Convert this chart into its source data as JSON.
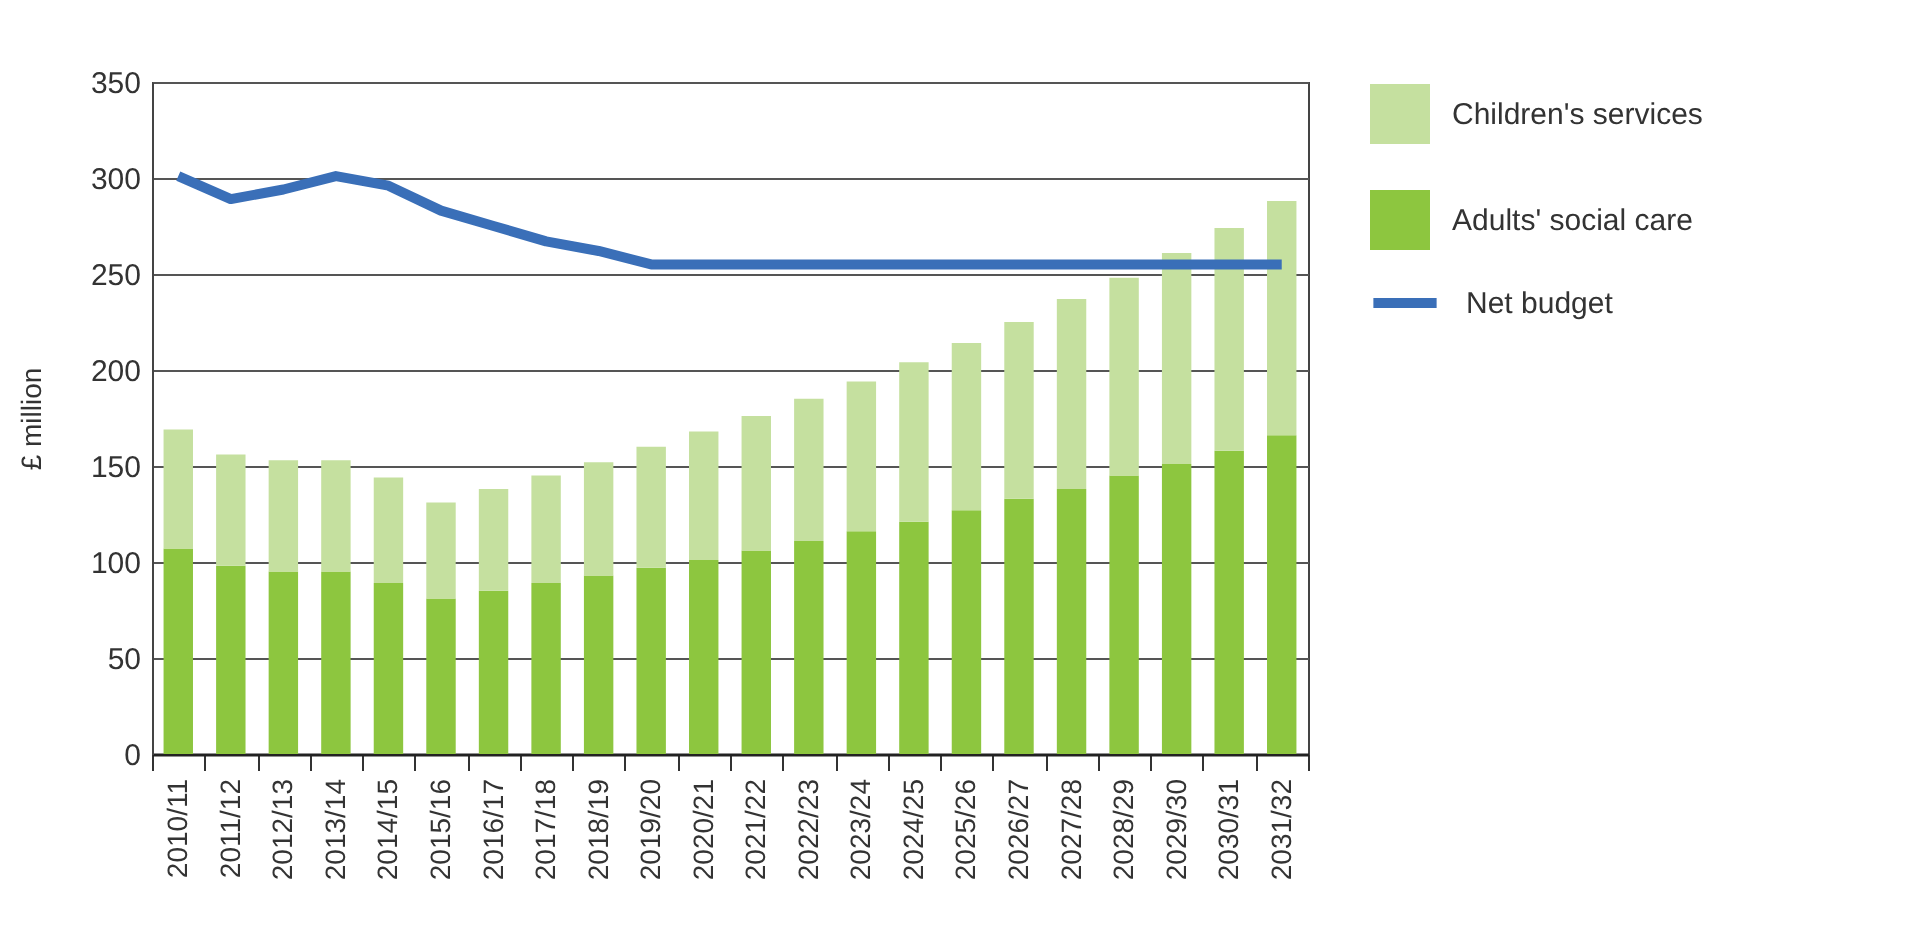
{
  "chart_data": {
    "type": "bar",
    "stacked": true,
    "ylabel": "£ million",
    "categories": [
      "2010/11",
      "2011/12",
      "2012/13",
      "2013/14",
      "2014/15",
      "2015/16",
      "2016/17",
      "2017/18",
      "2018/19",
      "2019/20",
      "2020/21",
      "2021/22",
      "2022/23",
      "2023/24",
      "2024/25",
      "2025/26",
      "2026/27",
      "2027/28",
      "2028/29",
      "2029/30",
      "2030/31",
      "2031/32"
    ],
    "series": [
      {
        "name": "Adults' social care",
        "color": "#8dc63f",
        "values": [
          107,
          98,
          95,
          95,
          89,
          81,
          85,
          89,
          93,
          97,
          101,
          106,
          111,
          116,
          121,
          127,
          133,
          138,
          145,
          151,
          158,
          166
        ]
      },
      {
        "name": "Children's services",
        "color": "#c5e09f",
        "values": [
          62,
          58,
          58,
          58,
          55,
          50,
          53,
          56,
          59,
          63,
          67,
          70,
          74,
          78,
          83,
          87,
          92,
          99,
          103,
          110,
          116,
          122
        ]
      },
      {
        "name": "Net budget",
        "type": "line",
        "color": "#3a6fb8",
        "values": [
          301,
          289,
          294,
          301,
          296,
          283,
          275,
          267,
          262,
          255,
          255,
          255,
          255,
          255,
          255,
          255,
          255,
          255,
          255,
          255,
          255,
          255
        ]
      }
    ],
    "ylim": [
      0,
      350
    ],
    "yticks": [
      0,
      50,
      100,
      150,
      200,
      250,
      300,
      350
    ],
    "grid": "y",
    "legend": "right"
  }
}
